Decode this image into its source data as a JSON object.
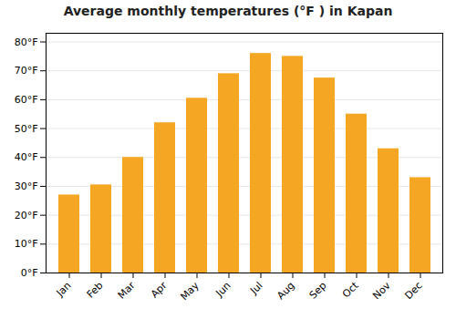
{
  "chart_data": {
    "type": "bar",
    "title": "Average monthly temperatures (°F ) in Kapan",
    "categories": [
      "Jan",
      "Feb",
      "Mar",
      "Apr",
      "May",
      "Jun",
      "Jul",
      "Aug",
      "Sep",
      "Oct",
      "Nov",
      "Dec"
    ],
    "values": [
      27,
      30.5,
      40,
      52,
      60.5,
      69,
      76,
      75,
      67.5,
      55,
      43,
      33
    ],
    "color": "#F5A623",
    "ylim": [
      0,
      83
    ],
    "yticks": [
      {
        "value": 0,
        "label": "0°F"
      },
      {
        "value": 10,
        "label": "10°F"
      },
      {
        "value": 20,
        "label": "20°F"
      },
      {
        "value": 30,
        "label": "30°F"
      },
      {
        "value": 40,
        "label": "40°F"
      },
      {
        "value": 50,
        "label": "50°F"
      },
      {
        "value": 60,
        "label": "60°F"
      },
      {
        "value": 70,
        "label": "70°F"
      },
      {
        "value": 80,
        "label": "80°F"
      }
    ],
    "grid": true
  }
}
